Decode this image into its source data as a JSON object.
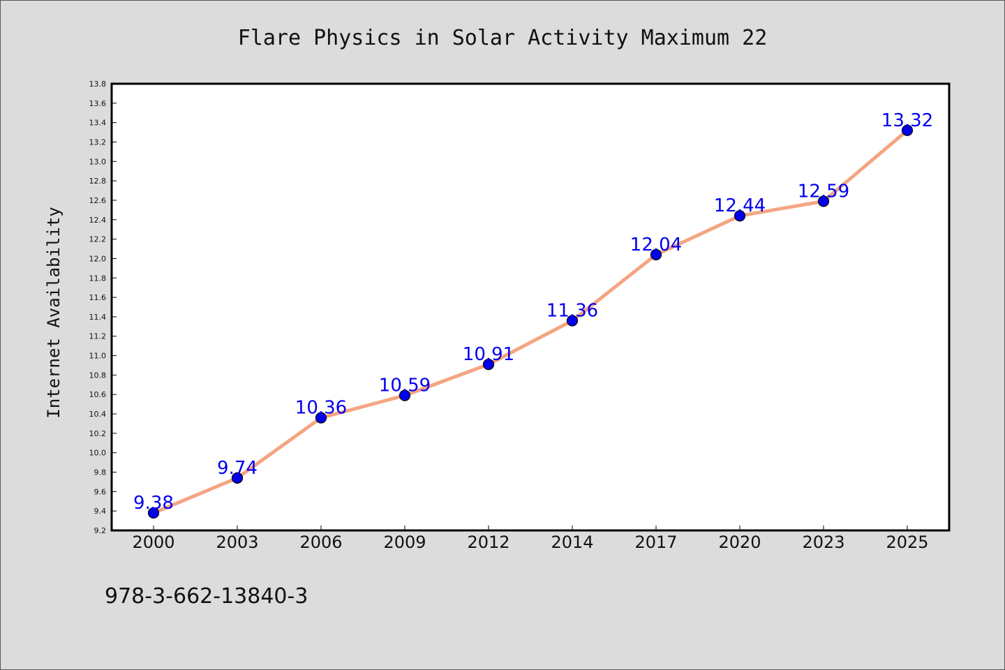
{
  "chart_data": {
    "type": "line",
    "title": "Flare Physics in Solar Activity Maximum 22",
    "xlabel": "",
    "ylabel": "Internet Availability",
    "categories": [
      "2000",
      "2003",
      "2006",
      "2009",
      "2012",
      "2014",
      "2017",
      "2020",
      "2023",
      "2025"
    ],
    "series": [
      {
        "values": [
          9.38,
          9.74,
          10.36,
          10.59,
          10.91,
          11.36,
          12.04,
          12.44,
          12.59,
          13.32
        ],
        "data_labels": [
          "9.38",
          "9.74",
          "10.36",
          "10.59",
          "10.91",
          "11.36",
          "12.04",
          "12.44",
          "12.59",
          "13.32"
        ],
        "line_color": "#f4a582",
        "marker_color": "#0000ee"
      }
    ],
    "ylim": [
      9.2,
      13.8
    ],
    "yticks": [
      "9.2",
      "9.4",
      "9.6",
      "9.8",
      "10.0",
      "10.2",
      "10.4",
      "10.6",
      "10.8",
      "11.0",
      "11.2",
      "11.4",
      "11.6",
      "11.8",
      "12.0",
      "12.2",
      "12.4",
      "12.6",
      "12.8",
      "13.0",
      "13.2",
      "13.4",
      "13.6",
      "13.8"
    ],
    "grid": false,
    "legend": "none"
  },
  "footer": {
    "isbn": "978-3-662-13840-3"
  },
  "colors": {
    "background": "#dcdcdc",
    "plot_background": "#ffffff",
    "line": "#f4a582",
    "marker": "#0000ee",
    "data_label": "#0000ee"
  }
}
